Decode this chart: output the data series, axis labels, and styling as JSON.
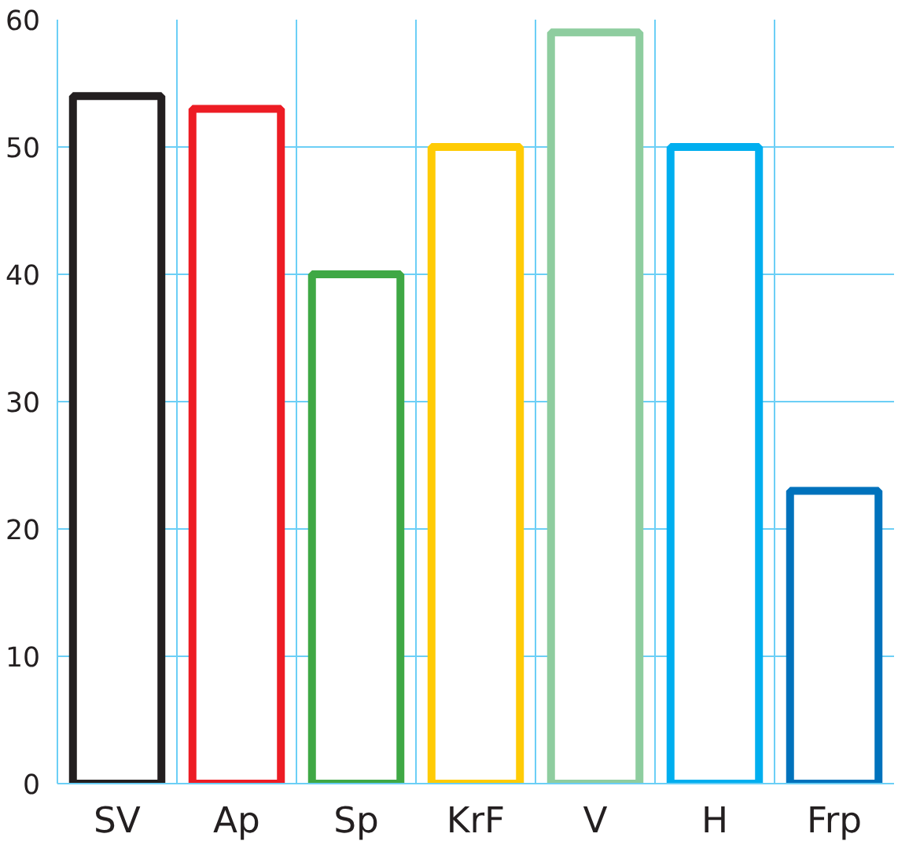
{
  "chart_data": {
    "type": "bar",
    "categories": [
      "SV",
      "Ap",
      "Sp",
      "KrF",
      "V",
      "H",
      "Frp"
    ],
    "values": [
      54,
      53,
      40,
      50,
      59,
      50,
      23
    ],
    "colors": [
      "#231f20",
      "#ed1c24",
      "#3fa845",
      "#ffcb05",
      "#8ecd9f",
      "#00aeef",
      "#0072bc"
    ],
    "ylim": [
      0,
      60
    ],
    "yticks": [
      0,
      10,
      20,
      30,
      40,
      50,
      60
    ],
    "grid": true
  }
}
